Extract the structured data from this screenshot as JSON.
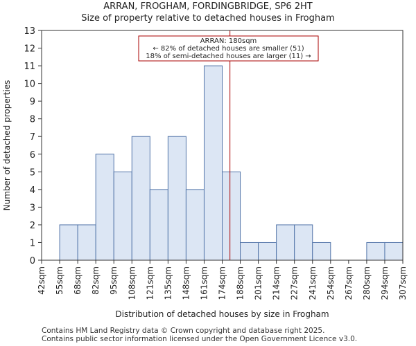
{
  "title_line1": "ARRAN, FROGHAM, FORDINGBRIDGE, SP6 2HT",
  "title_line2": "Size of property relative to detached houses in Frogham",
  "footer_line1": "Contains HM Land Registry data © Crown copyright and database right 2025.",
  "footer_line2": "Contains public sector information licensed under the Open Government Licence v3.0.",
  "colors": {
    "bar_fill": "#dce6f4",
    "bar_stroke": "#5577aa",
    "marker": "#aa0000",
    "annotation_border": "#aa0000"
  },
  "chart_data": {
    "type": "bar",
    "title": "Size of property relative to detached houses in Frogham",
    "xlabel": "Distribution of detached houses by size in Frogham",
    "ylabel": "Number of detached properties",
    "ylim": [
      0,
      13
    ],
    "yticks": [
      0,
      1,
      2,
      3,
      4,
      5,
      6,
      7,
      8,
      9,
      10,
      11,
      12,
      13
    ],
    "bin_edges": [
      42,
      55,
      68,
      82,
      95,
      108,
      121,
      135,
      148,
      161,
      174,
      188,
      201,
      214,
      227,
      241,
      254,
      267,
      280,
      294,
      307
    ],
    "tick_labels": [
      "42sqm",
      "55sqm",
      "68sqm",
      "82sqm",
      "95sqm",
      "108sqm",
      "121sqm",
      "135sqm",
      "148sqm",
      "161sqm",
      "174sqm",
      "188sqm",
      "201sqm",
      "214sqm",
      "227sqm",
      "241sqm",
      "254sqm",
      "267sqm",
      "280sqm",
      "294sqm",
      "307sqm"
    ],
    "values": [
      0,
      2,
      2,
      6,
      5,
      7,
      4,
      7,
      4,
      11,
      5,
      1,
      1,
      2,
      2,
      1,
      0,
      0,
      1,
      1
    ],
    "marker_value": 180,
    "annotation": {
      "line1": "ARRAN: 180sqm",
      "line2": "← 82% of detached houses are smaller (51)",
      "line3": "18% of semi-detached houses are larger (11) →"
    }
  }
}
